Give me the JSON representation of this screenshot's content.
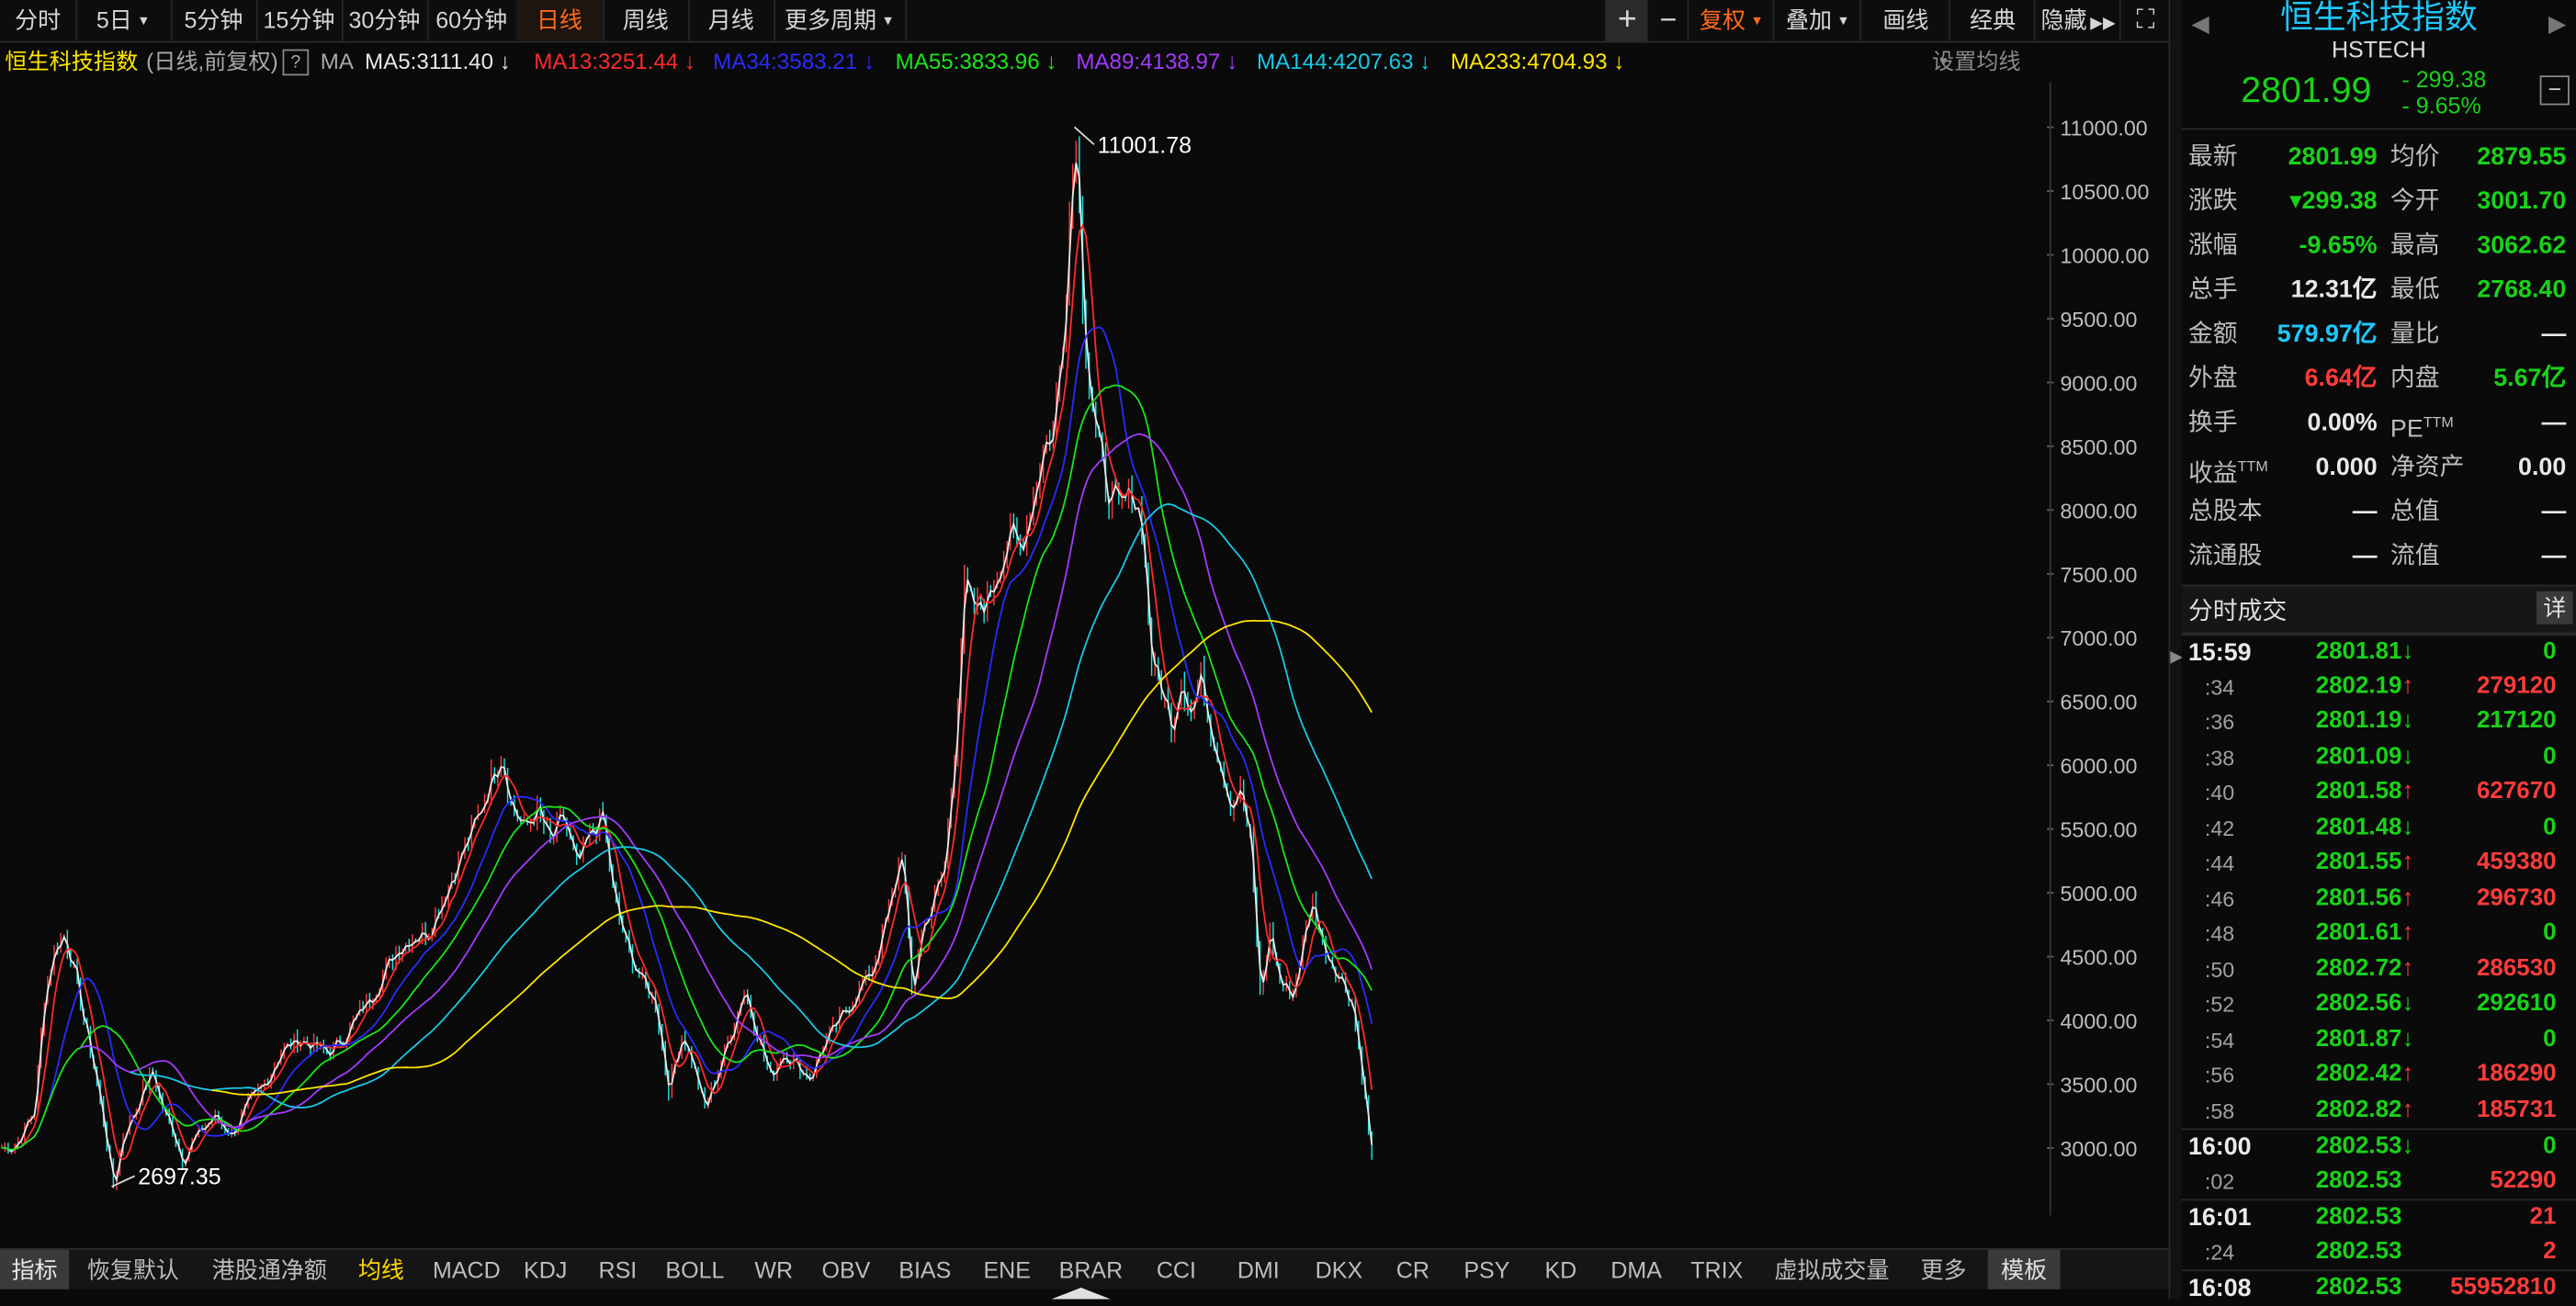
{
  "toolbar": {
    "periods": [
      "分时",
      "5日",
      "5分钟",
      "15分钟",
      "30分钟",
      "60分钟",
      "日线",
      "周线",
      "月线",
      "更多周期"
    ],
    "active_period": "日线",
    "zoom_in": "+",
    "zoom_out": "−",
    "fuquan": "复权",
    "overlay": "叠加",
    "draw": "画线",
    "classic": "经典",
    "hide": "隐藏",
    "expand_glyph": "⛶"
  },
  "ma_legend": {
    "index_name": "恒生科技指数",
    "mode": "(日线,前复权)",
    "help": "?",
    "ma_label": "MA",
    "items": [
      {
        "text": "MA5:3111.40",
        "arrow": "↓",
        "color": "#e8e8e8"
      },
      {
        "text": "MA13:3251.44",
        "arrow": "↓",
        "color": "#ff2a2a"
      },
      {
        "text": "MA34:3583.21",
        "arrow": "↓",
        "color": "#2a2aff"
      },
      {
        "text": "MA55:3833.96",
        "arrow": "↓",
        "color": "#19e619"
      },
      {
        "text": "MA89:4138.97",
        "arrow": "↓",
        "color": "#a23bff"
      },
      {
        "text": "MA144:4207.63",
        "arrow": "↓",
        "color": "#19c8e6"
      },
      {
        "text": "MA233:4704.93",
        "arrow": "↓",
        "color": "#ffe600"
      }
    ],
    "settings": "设置均线"
  },
  "chart_data": {
    "type": "line",
    "title": "恒生科技指数",
    "y_ticks": [
      11000.0,
      10500.0,
      10000.0,
      9500.0,
      9000.0,
      8500.0,
      8000.0,
      7500.0,
      7000.0,
      6500.0,
      6000.0,
      5500.0,
      5000.0,
      4500.0,
      4000.0,
      3500.0,
      3000.0
    ],
    "ylim": [
      2600,
      11200
    ],
    "annotations": [
      {
        "text": "11001.78",
        "value": 11001.78
      },
      {
        "text": "2697.35",
        "value": 2697.35
      }
    ],
    "grid": false,
    "series": [
      {
        "name": "MA5",
        "color": "#e8e8e8"
      },
      {
        "name": "MA13",
        "color": "#ff2a2a"
      },
      {
        "name": "MA34",
        "color": "#2a2aff"
      },
      {
        "name": "MA55",
        "color": "#19e619"
      },
      {
        "name": "MA89",
        "color": "#a23bff"
      },
      {
        "name": "MA144",
        "color": "#19c8e6"
      },
      {
        "name": "MA233",
        "color": "#ffe600"
      }
    ],
    "close_path": [
      [
        0,
        3000
      ],
      [
        8,
        3010
      ],
      [
        14,
        3150
      ],
      [
        20,
        3300
      ],
      [
        26,
        4200
      ],
      [
        32,
        4550
      ],
      [
        38,
        4670
      ],
      [
        44,
        4400
      ],
      [
        50,
        4000
      ],
      [
        56,
        3650
      ],
      [
        62,
        3200
      ],
      [
        68,
        2700
      ],
      [
        74,
        3100
      ],
      [
        80,
        3250
      ],
      [
        86,
        3450
      ],
      [
        92,
        3600
      ],
      [
        98,
        3300
      ],
      [
        104,
        3150
      ],
      [
        110,
        2900
      ],
      [
        116,
        3050
      ],
      [
        122,
        3150
      ],
      [
        130,
        3250
      ],
      [
        140,
        3100
      ],
      [
        150,
        3350
      ],
      [
        160,
        3500
      ],
      [
        170,
        3750
      ],
      [
        180,
        3850
      ],
      [
        190,
        3800
      ],
      [
        200,
        3750
      ],
      [
        210,
        3900
      ],
      [
        220,
        4100
      ],
      [
        230,
        4300
      ],
      [
        240,
        4550
      ],
      [
        250,
        4650
      ],
      [
        260,
        4700
      ],
      [
        270,
        5000
      ],
      [
        280,
        5300
      ],
      [
        290,
        5600
      ],
      [
        298,
        5900
      ],
      [
        304,
        6100
      ],
      [
        310,
        5700
      ],
      [
        318,
        5500
      ],
      [
        326,
        5650
      ],
      [
        334,
        5400
      ],
      [
        342,
        5600
      ],
      [
        350,
        5200
      ],
      [
        358,
        5450
      ],
      [
        366,
        5600
      ],
      [
        372,
        5000
      ],
      [
        380,
        4600
      ],
      [
        390,
        4300
      ],
      [
        398,
        4150
      ],
      [
        406,
        3450
      ],
      [
        414,
        3900
      ],
      [
        420,
        3700
      ],
      [
        428,
        3300
      ],
      [
        436,
        3600
      ],
      [
        444,
        3900
      ],
      [
        452,
        4250
      ],
      [
        460,
        3900
      ],
      [
        468,
        3550
      ],
      [
        476,
        3750
      ],
      [
        484,
        3650
      ],
      [
        492,
        3550
      ],
      [
        500,
        3800
      ],
      [
        510,
        4000
      ],
      [
        520,
        4200
      ],
      [
        530,
        4400
      ],
      [
        540,
        4850
      ],
      [
        548,
        5350
      ],
      [
        554,
        4200
      ],
      [
        560,
        4700
      ],
      [
        566,
        4900
      ],
      [
        574,
        5200
      ],
      [
        580,
        6100
      ],
      [
        586,
        7400
      ],
      [
        592,
        7200
      ],
      [
        600,
        7300
      ],
      [
        608,
        7600
      ],
      [
        614,
        7800
      ],
      [
        620,
        7700
      ],
      [
        628,
        8100
      ],
      [
        634,
        8500
      ],
      [
        640,
        8600
      ],
      [
        646,
        9400
      ],
      [
        650,
        10300
      ],
      [
        654,
        11000
      ],
      [
        658,
        9700
      ],
      [
        662,
        9000
      ],
      [
        666,
        8600
      ],
      [
        672,
        8200
      ],
      [
        680,
        8000
      ],
      [
        688,
        8150
      ],
      [
        694,
        7900
      ],
      [
        700,
        6800
      ],
      [
        706,
        6600
      ],
      [
        712,
        6300
      ],
      [
        718,
        6700
      ],
      [
        724,
        6400
      ],
      [
        730,
        6700
      ],
      [
        736,
        6300
      ],
      [
        742,
        6000
      ],
      [
        748,
        5700
      ],
      [
        754,
        5800
      ],
      [
        760,
        5400
      ],
      [
        766,
        4200
      ],
      [
        772,
        4700
      ],
      [
        778,
        4300
      ],
      [
        786,
        4200
      ],
      [
        792,
        4600
      ],
      [
        798,
        4950
      ],
      [
        804,
        4600
      ],
      [
        810,
        4450
      ],
      [
        816,
        4300
      ],
      [
        822,
        4150
      ],
      [
        828,
        3600
      ],
      [
        834,
        2900
      ]
    ]
  },
  "indicator_tabs": [
    "指标",
    "恢复默认",
    "港股通净额",
    "均线",
    "MACD",
    "KDJ",
    "RSI",
    "BOLL",
    "WR",
    "OBV",
    "BIAS",
    "ENE",
    "BRAR",
    "CCI",
    "DMI",
    "DKX",
    "CR",
    "PSY",
    "KD",
    "DMA",
    "TRIX",
    "虚拟成交量",
    "更多",
    "模板"
  ],
  "nav": {
    "left": "≪",
    "right": "≫"
  },
  "quote_panel": {
    "name": "恒生科技指数",
    "code": "HSTECH",
    "price": "2801.99",
    "change": "- 299.38",
    "change_pct": "- 9.65%",
    "minus_button": "−",
    "arrow_left": "◀",
    "arrow_right": "▶",
    "rows": [
      [
        {
          "label": "最新",
          "value": "2801.99",
          "color": "#19d219"
        },
        {
          "label": "均价",
          "value": "2879.55",
          "color": "#19d219"
        }
      ],
      [
        {
          "label": "涨跌",
          "value": "▾299.38",
          "color": "#19d219"
        },
        {
          "label": "今开",
          "value": "3001.70",
          "color": "#19d219"
        }
      ],
      [
        {
          "label": "涨幅",
          "value": "-9.65%",
          "color": "#19d219"
        },
        {
          "label": "最高",
          "value": "3062.62",
          "color": "#19d219"
        }
      ],
      [
        {
          "label": "总手",
          "value": "12.31亿",
          "color": "#e8e8e8"
        },
        {
          "label": "最低",
          "value": "2768.40",
          "color": "#19d219"
        }
      ],
      [
        {
          "label": "金额",
          "value": "579.97亿",
          "color": "#1ec8ff"
        },
        {
          "label": "量比",
          "value": "—",
          "color": "#e8e8e8"
        }
      ],
      [
        {
          "label": "外盘",
          "value": "6.64亿",
          "color": "#ff3b3b"
        },
        {
          "label": "内盘",
          "value": "5.67亿",
          "color": "#19d219"
        }
      ],
      [
        {
          "label": "换手",
          "value": "0.00%",
          "color": "#e8e8e8"
        },
        {
          "label": "PE",
          "sup": "TTM",
          "value": "—",
          "color": "#e8e8e8"
        }
      ],
      [
        {
          "label": "收益",
          "sup": "TTM",
          "value": "0.000",
          "color": "#e8e8e8"
        },
        {
          "label": "净资产",
          "value": "0.00",
          "color": "#e8e8e8"
        }
      ],
      [
        {
          "label": "总股本",
          "value": "—",
          "color": "#e8e8e8"
        },
        {
          "label": "总值",
          "value": "—",
          "color": "#e8e8e8"
        }
      ],
      [
        {
          "label": "流通股",
          "value": "—",
          "color": "#e8e8e8"
        },
        {
          "label": "流值",
          "value": "—",
          "color": "#e8e8e8"
        }
      ]
    ]
  },
  "trades": {
    "title": "分时成交",
    "detail": "详",
    "rows": [
      {
        "time": "15:59",
        "bold": true,
        "price": "2801.81",
        "dir": "down",
        "vol": "0"
      },
      {
        "time": ":34",
        "price": "2802.19",
        "dir": "up",
        "vol": "279120"
      },
      {
        "time": ":36",
        "price": "2801.19",
        "dir": "down",
        "vol": "217120"
      },
      {
        "time": ":38",
        "price": "2801.09",
        "dir": "down",
        "vol": "0"
      },
      {
        "time": ":40",
        "price": "2801.58",
        "dir": "up",
        "vol": "627670"
      },
      {
        "time": ":42",
        "price": "2801.48",
        "dir": "down",
        "vol": "0"
      },
      {
        "time": ":44",
        "price": "2801.55",
        "dir": "up",
        "vol": "459380"
      },
      {
        "time": ":46",
        "price": "2801.56",
        "dir": "up",
        "vol": "296730"
      },
      {
        "time": ":48",
        "price": "2801.61",
        "dir": "up",
        "vol": "0"
      },
      {
        "time": ":50",
        "price": "2802.72",
        "dir": "up",
        "vol": "286530"
      },
      {
        "time": ":52",
        "price": "2802.56",
        "dir": "down",
        "vol": "292610"
      },
      {
        "time": ":54",
        "price": "2801.87",
        "dir": "down",
        "vol": "0"
      },
      {
        "time": ":56",
        "price": "2802.42",
        "dir": "up",
        "vol": "186290"
      },
      {
        "time": ":58",
        "price": "2802.82",
        "dir": "up",
        "vol": "185731"
      },
      {
        "time": "16:00",
        "bold": true,
        "price": "2802.53",
        "dir": "down",
        "vol": "0"
      },
      {
        "time": ":02",
        "price": "2802.53",
        "dir": "",
        "vol": "52290"
      },
      {
        "time": "16:01",
        "bold": true,
        "price": "2802.53",
        "dir": "",
        "vol": "21"
      },
      {
        "time": ":24",
        "price": "2802.53",
        "dir": "",
        "vol": "2"
      },
      {
        "time": "16:08",
        "bold": true,
        "price": "2802.53",
        "dir": "",
        "vol": "55952810"
      }
    ]
  },
  "colors": {
    "up": "#ff3b3b",
    "down": "#19d219",
    "accent": "#ff6a1a",
    "brand": "#1ec8ff"
  }
}
